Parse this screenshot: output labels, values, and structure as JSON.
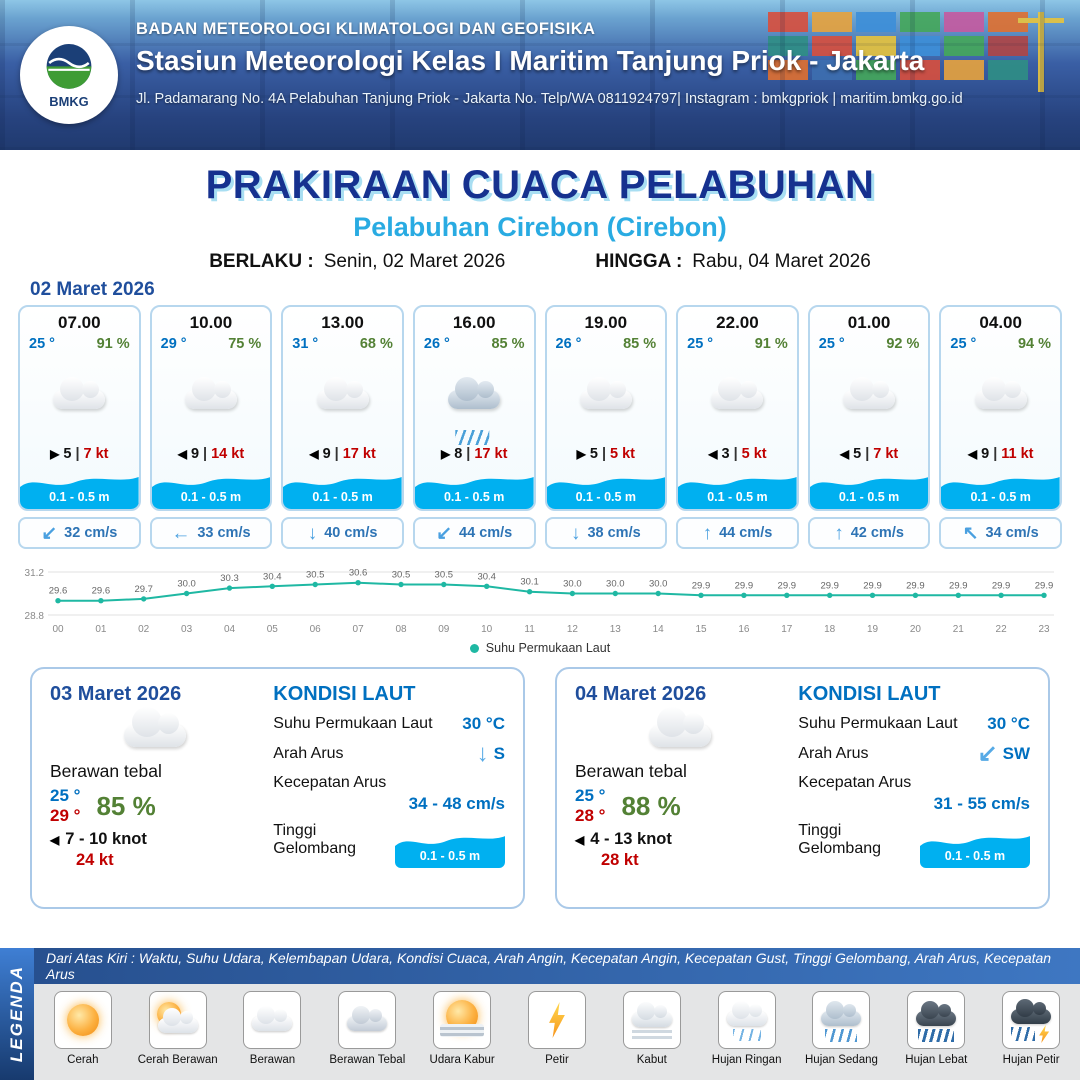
{
  "sep": "|",
  "header": {
    "logo": "BMKG",
    "org": "BADAN METEOROLOGI KLIMATOLOGI DAN GEOFISIKA",
    "station": "Stasiun Meteorologi Kelas I Maritim Tanjung Priok - Jakarta",
    "contact": "Jl. Padamarang No. 4A Pelabuhan Tanjung Priok - Jakarta No. Telp/WA 0811924797| Instagram : bmkgpriok | maritim.bmkg.go.id"
  },
  "title": {
    "main": "PRAKIRAAN CUACA PELABUHAN",
    "port": "Pelabuhan Cirebon (Cirebon)",
    "berlaku_label": "BERLAKU :",
    "berlaku": "Senin, 02 Maret 2026",
    "hingga_label": "HINGGA :",
    "hingga": "Rabu, 04 Maret 2026"
  },
  "hourly_date": "02 Maret 2026",
  "hourly": [
    {
      "time": "07.00",
      "temp": "25 °",
      "rh": "91 %",
      "icon": "berawan",
      "wind_arrow": "▶",
      "wind": "5",
      "gust": "7 kt",
      "wave": "0.1 - 0.5 m",
      "cur_arrow": "↙",
      "current": "32 cm/s"
    },
    {
      "time": "10.00",
      "temp": "29 °",
      "rh": "75 %",
      "icon": "berawan",
      "wind_arrow": "◀",
      "wind": "9",
      "gust": "14 kt",
      "wave": "0.1 - 0.5 m",
      "cur_arrow": "←",
      "current": "33 cm/s"
    },
    {
      "time": "13.00",
      "temp": "31 °",
      "rh": "68 %",
      "icon": "berawan",
      "wind_arrow": "◀",
      "wind": "9",
      "gust": "17 kt",
      "wave": "0.1 - 0.5 m",
      "cur_arrow": "↓",
      "current": "40 cm/s"
    },
    {
      "time": "16.00",
      "temp": "26 °",
      "rh": "85 %",
      "icon": "hujan-sedang",
      "wind_arrow": "▶",
      "wind": "8",
      "gust": "17 kt",
      "wave": "0.1 - 0.5 m",
      "cur_arrow": "↙",
      "current": "44 cm/s"
    },
    {
      "time": "19.00",
      "temp": "26 °",
      "rh": "85 %",
      "icon": "berawan",
      "wind_arrow": "▶",
      "wind": "5",
      "gust": "5 kt",
      "wave": "0.1 - 0.5 m",
      "cur_arrow": "↓",
      "current": "38 cm/s"
    },
    {
      "time": "22.00",
      "temp": "25 °",
      "rh": "91 %",
      "icon": "berawan",
      "wind_arrow": "◀",
      "wind": "3",
      "gust": "5 kt",
      "wave": "0.1 - 0.5 m",
      "cur_arrow": "↑",
      "current": "44 cm/s"
    },
    {
      "time": "01.00",
      "temp": "25 °",
      "rh": "92 %",
      "icon": "berawan",
      "wind_arrow": "◀",
      "wind": "5",
      "gust": "7 kt",
      "wave": "0.1 - 0.5 m",
      "cur_arrow": "↑",
      "current": "42 cm/s"
    },
    {
      "time": "04.00",
      "temp": "25 °",
      "rh": "94 %",
      "icon": "berawan",
      "wind_arrow": "◀",
      "wind": "9",
      "gust": "11 kt",
      "wave": "0.1 - 0.5 m",
      "cur_arrow": "↖",
      "current": "34 cm/s"
    }
  ],
  "chart_data": {
    "type": "line",
    "x": [
      "00",
      "01",
      "02",
      "03",
      "04",
      "05",
      "06",
      "07",
      "08",
      "09",
      "10",
      "11",
      "12",
      "13",
      "14",
      "15",
      "16",
      "17",
      "18",
      "19",
      "20",
      "21",
      "22",
      "23"
    ],
    "series": [
      {
        "name": "Suhu Permukaan Laut",
        "values": [
          29.6,
          29.6,
          29.7,
          30.0,
          30.3,
          30.4,
          30.5,
          30.6,
          30.5,
          30.5,
          30.4,
          30.1,
          30.0,
          30.0,
          30.0,
          29.9,
          29.9,
          29.9,
          29.9,
          29.9,
          29.9,
          29.9,
          29.9,
          29.9
        ]
      }
    ],
    "ylim": [
      28.8,
      31.2
    ],
    "line_color": "#1fb8a3",
    "grid": true,
    "legend_position": "bottom",
    "title": "",
    "xlabel": "",
    "ylabel": ""
  },
  "labels": {
    "kondisi": "KONDISI LAUT",
    "sst": "Suhu Permukaan Laut",
    "arah": "Arah Arus",
    "kecepatan": "Kecepatan Arus",
    "tinggi": "Tinggi Gelombang"
  },
  "daily": [
    {
      "date": "03 Maret 2026",
      "condition": "Berawan tebal",
      "temp_min": "25 °",
      "temp_max": "29 °",
      "rh": "85 %",
      "wind_arrow": "◀",
      "wind": "7  - 10 knot",
      "gust": "24 kt",
      "sst": "30 °C",
      "cur_dir_arrow": "↓",
      "cur_dir": "S",
      "cur_speed": "34 - 48 cm/s",
      "wave": "0.1 - 0.5 m"
    },
    {
      "date": "04 Maret 2026",
      "condition": "Berawan tebal",
      "temp_min": "25 °",
      "temp_max": "28 °",
      "rh": "88 %",
      "wind_arrow": "◀",
      "wind": "4  - 13 knot",
      "gust": "28 kt",
      "sst": "30 °C",
      "cur_dir_arrow": "↙",
      "cur_dir": "SW",
      "cur_speed": "31 - 55 cm/s",
      "wave": "0.1 - 0.5 m"
    }
  ],
  "legend": {
    "sidebar": "LEGENDA",
    "description": "Dari Atas Kiri : Waktu, Suhu Udara, Kelembapan Udara, Kondisi Cuaca, Arah Angin, Kecepatan Angin, Kecepatan Gust, Tinggi Gelombang, Arah Arus, Kecepatan Arus",
    "items": [
      {
        "label": "Cerah",
        "icon": "cerah"
      },
      {
        "label": "Cerah Berawan",
        "icon": "cerah-berawan"
      },
      {
        "label": "Berawan",
        "icon": "berawan"
      },
      {
        "label": "Berawan Tebal",
        "icon": "berawan-tebal"
      },
      {
        "label": "Udara Kabur",
        "icon": "udara-kabur"
      },
      {
        "label": "Petir",
        "icon": "petir"
      },
      {
        "label": "Kabut",
        "icon": "kabut"
      },
      {
        "label": "Hujan Ringan",
        "icon": "hujan-ringan"
      },
      {
        "label": "Hujan Sedang",
        "icon": "hujan-sedang"
      },
      {
        "label": "Hujan Lebat",
        "icon": "hujan-lebat"
      },
      {
        "label": "Hujan Petir",
        "icon": "hujan-petir"
      }
    ]
  },
  "colors": {
    "title_navy": "#16318f",
    "port_cyan": "#29abe2",
    "temp_blue": "#0070c0",
    "rh_green": "#538135",
    "gust_red": "#c00000",
    "wave_blue": "#00b0f0",
    "chart_teal": "#1fb8a3",
    "header_blue": "#27437f"
  }
}
